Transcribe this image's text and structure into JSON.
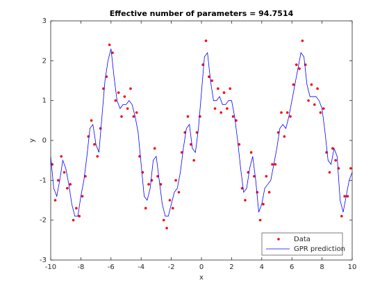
{
  "chart_data": {
    "type": "line",
    "title": "Effective number of parameters = 94.7514",
    "xlabel": "x",
    "ylabel": "y",
    "xlim": [
      -10,
      10
    ],
    "ylim": [
      -3,
      3
    ],
    "xticks": [
      -10,
      -8,
      -6,
      -4,
      -2,
      0,
      2,
      4,
      6,
      8,
      10
    ],
    "yticks": [
      -3,
      -2,
      -1,
      0,
      1,
      2,
      3
    ],
    "legend": "southeast",
    "series": [
      {
        "name": "Data",
        "type": "scatter",
        "color": "#ff0000",
        "x": [
          -9.9,
          -9.7,
          -9.5,
          -9.3,
          -9.1,
          -8.9,
          -8.7,
          -8.5,
          -8.3,
          -8.1,
          -7.9,
          -7.7,
          -7.5,
          -7.3,
          -7.1,
          -6.9,
          -6.7,
          -6.5,
          -6.3,
          -6.1,
          -5.9,
          -5.7,
          -5.5,
          -5.3,
          -5.1,
          -4.9,
          -4.7,
          -4.5,
          -4.3,
          -4.1,
          -3.9,
          -3.7,
          -3.5,
          -3.3,
          -3.1,
          -2.9,
          -2.7,
          -2.5,
          -2.3,
          -2.1,
          -1.9,
          -1.7,
          -1.5,
          -1.3,
          -1.1,
          -0.9,
          -0.7,
          -0.5,
          -0.3,
          -0.1,
          0.1,
          0.3,
          0.5,
          0.7,
          0.9,
          1.1,
          1.3,
          1.5,
          1.7,
          1.9,
          2.1,
          2.3,
          2.5,
          2.7,
          2.9,
          3.1,
          3.3,
          3.5,
          3.7,
          3.9,
          4.1,
          4.3,
          4.5,
          4.7,
          4.9,
          5.1,
          5.3,
          5.5,
          5.7,
          5.9,
          6.1,
          6.3,
          6.5,
          6.7,
          6.9,
          7.1,
          7.3,
          7.5,
          7.7,
          7.9,
          8.1,
          8.3,
          8.5,
          8.7,
          8.9,
          9.1,
          9.3,
          9.5,
          9.7,
          9.9
        ],
        "values": [
          -0.6,
          -1.5,
          -1.0,
          -0.4,
          -0.8,
          -1.2,
          -1.1,
          -2.0,
          -1.7,
          -1.9,
          -1.4,
          -0.9,
          0.1,
          0.5,
          -0.1,
          -0.4,
          0.3,
          1.3,
          1.6,
          2.4,
          2.2,
          1.0,
          1.2,
          0.6,
          1.1,
          0.8,
          1.3,
          0.6,
          0.7,
          -0.4,
          -0.8,
          -1.7,
          -1.1,
          -1.0,
          -0.2,
          -0.9,
          -1.1,
          -2.0,
          -2.2,
          -1.5,
          -1.7,
          -1.0,
          -1.3,
          -0.3,
          0.2,
          0.6,
          -0.1,
          -0.5,
          0.2,
          0.6,
          1.9,
          2.5,
          1.6,
          1.5,
          0.8,
          1.3,
          0.7,
          1.2,
          0.8,
          1.3,
          0.6,
          0.5,
          -0.1,
          -1.2,
          -1.5,
          -0.8,
          -0.3,
          -0.9,
          -1.3,
          -2.0,
          -1.6,
          -0.9,
          -1.3,
          -0.6,
          -0.6,
          0.2,
          0.7,
          0.1,
          0.7,
          0.6,
          1.4,
          1.9,
          1.8,
          2.5,
          1.9,
          1.0,
          1.4,
          0.9,
          1.3,
          0.7,
          0.8,
          -0.3,
          -0.8,
          -0.2,
          -0.5,
          -0.7,
          -1.9,
          -1.4,
          -1.4,
          -0.7
        ]
      },
      {
        "name": "GPR prediction",
        "type": "line",
        "color": "#0000ff",
        "x": [
          -10,
          -9.8,
          -9.6,
          -9.4,
          -9.2,
          -9,
          -8.8,
          -8.6,
          -8.4,
          -8.2,
          -8,
          -7.8,
          -7.6,
          -7.4,
          -7.2,
          -7,
          -6.8,
          -6.6,
          -6.4,
          -6.2,
          -6,
          -5.8,
          -5.6,
          -5.4,
          -5.2,
          -5,
          -4.8,
          -4.6,
          -4.4,
          -4.2,
          -4,
          -3.8,
          -3.6,
          -3.4,
          -3.2,
          -3,
          -2.8,
          -2.6,
          -2.4,
          -2.2,
          -2,
          -1.8,
          -1.6,
          -1.4,
          -1.2,
          -1,
          -0.8,
          -0.6,
          -0.4,
          -0.2,
          0,
          0.2,
          0.4,
          0.6,
          0.8,
          1,
          1.2,
          1.4,
          1.6,
          1.8,
          2,
          2.2,
          2.4,
          2.6,
          2.8,
          3,
          3.2,
          3.4,
          3.6,
          3.8,
          4,
          4.2,
          4.4,
          4.6,
          4.8,
          5,
          5.2,
          5.4,
          5.6,
          5.8,
          6,
          6.2,
          6.4,
          6.6,
          6.8,
          7,
          7.2,
          7.4,
          7.6,
          7.8,
          8,
          8.2,
          8.4,
          8.6,
          8.8,
          9,
          9.2,
          9.4,
          9.6,
          9.8,
          10
        ],
        "values": [
          -0.4,
          -1.2,
          -1.4,
          -1.0,
          -0.5,
          -0.7,
          -1.1,
          -1.6,
          -1.9,
          -1.9,
          -1.4,
          -1.0,
          -0.4,
          0.3,
          0.4,
          -0.1,
          -0.3,
          0.6,
          1.5,
          2.0,
          2.3,
          1.6,
          1.0,
          0.8,
          0.9,
          0.9,
          1.0,
          0.9,
          0.6,
          0.2,
          -0.6,
          -1.4,
          -1.5,
          -1.2,
          -0.5,
          -0.4,
          -1.0,
          -1.6,
          -1.9,
          -1.9,
          -1.6,
          -1.3,
          -1.2,
          -0.8,
          -0.2,
          0.3,
          0.4,
          -0.2,
          -0.3,
          0.3,
          1.2,
          2.1,
          2.2,
          1.5,
          1.0,
          1.0,
          1.1,
          0.9,
          0.9,
          1.0,
          1.0,
          0.6,
          0.0,
          -0.7,
          -1.3,
          -1.2,
          -0.7,
          -0.4,
          -1.0,
          -1.8,
          -1.6,
          -1.2,
          -1.1,
          -1.0,
          -0.6,
          -0.2,
          0.3,
          0.4,
          0.3,
          0.6,
          1.0,
          1.4,
          1.8,
          2.2,
          2.1,
          1.4,
          1.1,
          1.1,
          1.1,
          1.0,
          0.8,
          0.2,
          -0.5,
          -0.6,
          -0.2,
          -0.4,
          -1.5,
          -1.8,
          -1.4,
          -1.0,
          -0.8
        ]
      }
    ]
  }
}
